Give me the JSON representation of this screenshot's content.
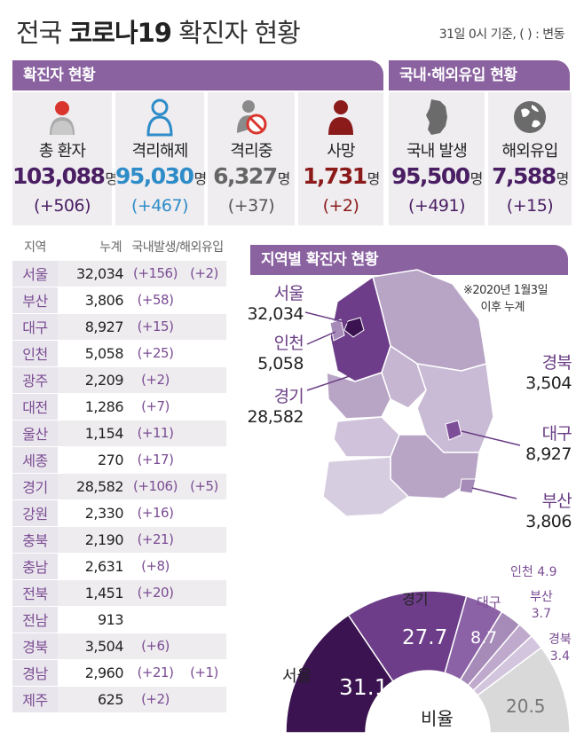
{
  "title_light": "전국",
  "title_bold": "코로나19",
  "title_rest": "확진자 현황",
  "basis": "31일 0시 기준, ( ) : 변동",
  "section_confirmed": "확진자 현황",
  "section_origin": "국내·해외유입 현황",
  "colors": {
    "purple": "#8a62a0",
    "blue": "#2e8cc8",
    "gray": "#666666",
    "darkred": "#8b1a1a",
    "deep": "#4a1e63"
  },
  "confirmed_cards": [
    {
      "label": "총 환자",
      "value": "103,088",
      "unit": "명",
      "change": "(+506)",
      "icon": "person-red-icon"
    },
    {
      "label": "격리해제",
      "value": "95,030",
      "unit": "명",
      "change": "(+467)",
      "icon": "person-outline-icon"
    },
    {
      "label": "격리중",
      "value": "6,327",
      "unit": "명",
      "change": "(+37)",
      "icon": "person-prohibited-icon"
    },
    {
      "label": "사망",
      "value": "1,731",
      "unit": "명",
      "change": "(+2)",
      "icon": "person-darkred-icon"
    }
  ],
  "origin_cards": [
    {
      "label": "국내 발생",
      "value": "95,500",
      "unit": "명",
      "change": "(+491)",
      "icon": "korea-map-icon"
    },
    {
      "label": "해외유입",
      "value": "7,588",
      "unit": "명",
      "change": "(+15)",
      "icon": "globe-icon"
    }
  ],
  "table": {
    "headers": [
      "지역",
      "누계",
      "국내발생/해외유입"
    ],
    "rows": [
      {
        "region": "서울",
        "total": "32,034",
        "domestic": "(+156)",
        "abroad": "(+2)"
      },
      {
        "region": "부산",
        "total": "3,806",
        "domestic": "(+58)",
        "abroad": ""
      },
      {
        "region": "대구",
        "total": "8,927",
        "domestic": "(+15)",
        "abroad": ""
      },
      {
        "region": "인천",
        "total": "5,058",
        "domestic": "(+25)",
        "abroad": ""
      },
      {
        "region": "광주",
        "total": "2,209",
        "domestic": "(+2)",
        "abroad": ""
      },
      {
        "region": "대전",
        "total": "1,286",
        "domestic": "(+7)",
        "abroad": ""
      },
      {
        "region": "울산",
        "total": "1,154",
        "domestic": "(+11)",
        "abroad": ""
      },
      {
        "region": "세종",
        "total": "270",
        "domestic": "(+17)",
        "abroad": ""
      },
      {
        "region": "경기",
        "total": "28,582",
        "domestic": "(+106)",
        "abroad": "(+5)"
      },
      {
        "region": "강원",
        "total": "2,330",
        "domestic": "(+16)",
        "abroad": ""
      },
      {
        "region": "충북",
        "total": "2,190",
        "domestic": "(+21)",
        "abroad": ""
      },
      {
        "region": "충남",
        "total": "2,631",
        "domestic": "(+8)",
        "abroad": ""
      },
      {
        "region": "전북",
        "total": "1,451",
        "domestic": "(+20)",
        "abroad": ""
      },
      {
        "region": "전남",
        "total": "913",
        "domestic": "",
        "abroad": ""
      },
      {
        "region": "경북",
        "total": "3,504",
        "domestic": "(+6)",
        "abroad": ""
      },
      {
        "region": "경남",
        "total": "2,960",
        "domestic": "(+21)",
        "abroad": "(+1)"
      },
      {
        "region": "제주",
        "total": "625",
        "domestic": "(+2)",
        "abroad": ""
      }
    ]
  },
  "map": {
    "title": "지역별 확진자 현황",
    "note_line1": "※2020년 1월3일",
    "note_line2": "이후 누계",
    "labels": {
      "seoul": {
        "name": "서울",
        "value": "32,034"
      },
      "incheon": {
        "name": "인천",
        "value": "5,058"
      },
      "gyeonggi": {
        "name": "경기",
        "value": "28,582"
      },
      "gyeongbuk": {
        "name": "경북",
        "value": "3,504"
      },
      "daegu": {
        "name": "대구",
        "value": "8,927"
      },
      "busan": {
        "name": "부산",
        "value": "3,806"
      }
    }
  },
  "ratio": {
    "center_label": "비율",
    "seoul": {
      "name": "서울",
      "value": "31.1",
      "unit": "%"
    },
    "gyeonggi": {
      "name": "경기",
      "value": "27.7"
    },
    "daegu": {
      "name": "대구",
      "value": "8.7"
    },
    "incheon": {
      "name": "인천",
      "value": "4.9"
    },
    "busan": {
      "name": "부산",
      "value": "3.7"
    },
    "gyeongbuk": {
      "name": "경북",
      "value": "3.4"
    },
    "other": {
      "value": "20.5"
    }
  }
}
